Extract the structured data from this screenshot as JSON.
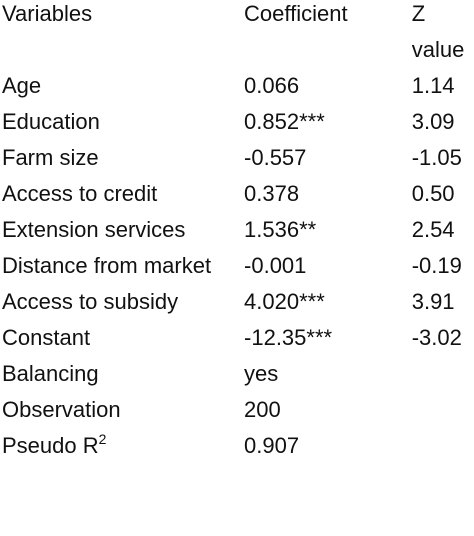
{
  "table": {
    "header": [
      "Variables",
      "Coefficient",
      "Z value"
    ],
    "rows": [
      [
        "Age",
        "0.066",
        "1.14"
      ],
      [
        "Education",
        "0.852***",
        "3.09"
      ],
      [
        "Farm size",
        "-0.557",
        "-1.05"
      ],
      [
        "Access to credit",
        "0.378",
        "0.50"
      ],
      [
        "Extension services",
        "1.536**",
        "2.54"
      ],
      [
        "Distance from market",
        "-0.001",
        "-0.19"
      ],
      [
        "Access to subsidy",
        "4.020***",
        "3.91"
      ],
      [
        "Constant",
        "-12.35***",
        "-3.02"
      ],
      [
        "Balancing",
        "yes"
      ],
      [
        "Observation",
        "200"
      ],
      [
        {
          "text": "Pseudo R",
          "sup": "2"
        },
        "0.907"
      ]
    ]
  }
}
